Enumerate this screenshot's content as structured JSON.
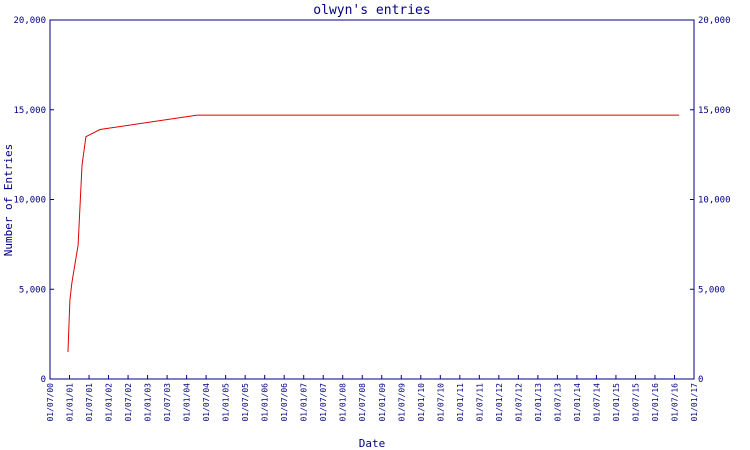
{
  "chart_data": {
    "type": "line",
    "title": "olwyn's entries",
    "x_label": "Date",
    "y_label": "Number of Entries",
    "x": [
      2000.96,
      2001.01,
      2001.06,
      2001.22,
      2001.32,
      2001.42,
      2001.78,
      2004.27,
      2016.62
    ],
    "series": [
      {
        "name": "olwyn",
        "color": "#e00000",
        "values": [
          1500,
          4400,
          5350,
          7460,
          11900,
          13500,
          13900,
          14700,
          14700
        ]
      }
    ],
    "xlim": [
      2000.5,
      2017.0
    ],
    "xticks": [
      {
        "value": 2000.5,
        "label": "01/07/00"
      },
      {
        "value": 2001.0,
        "label": "01/01/01"
      },
      {
        "value": 2001.5,
        "label": "01/07/01"
      },
      {
        "value": 2002.0,
        "label": "01/01/02"
      },
      {
        "value": 2002.5,
        "label": "01/07/02"
      },
      {
        "value": 2003.0,
        "label": "01/01/03"
      },
      {
        "value": 2003.5,
        "label": "01/07/03"
      },
      {
        "value": 2004.0,
        "label": "01/01/04"
      },
      {
        "value": 2004.5,
        "label": "01/07/04"
      },
      {
        "value": 2005.0,
        "label": "01/01/05"
      },
      {
        "value": 2005.5,
        "label": "01/07/05"
      },
      {
        "value": 2006.0,
        "label": "01/01/06"
      },
      {
        "value": 2006.5,
        "label": "01/07/06"
      },
      {
        "value": 2007.0,
        "label": "01/01/07"
      },
      {
        "value": 2007.5,
        "label": "01/07/07"
      },
      {
        "value": 2008.0,
        "label": "01/01/08"
      },
      {
        "value": 2008.5,
        "label": "01/07/08"
      },
      {
        "value": 2009.0,
        "label": "01/01/09"
      },
      {
        "value": 2009.5,
        "label": "01/07/09"
      },
      {
        "value": 2010.0,
        "label": "01/01/10"
      },
      {
        "value": 2010.5,
        "label": "01/07/10"
      },
      {
        "value": 2011.0,
        "label": "01/01/11"
      },
      {
        "value": 2011.5,
        "label": "01/07/11"
      },
      {
        "value": 2012.0,
        "label": "01/01/12"
      },
      {
        "value": 2012.5,
        "label": "01/07/12"
      },
      {
        "value": 2013.0,
        "label": "01/01/13"
      },
      {
        "value": 2013.5,
        "label": "01/07/13"
      },
      {
        "value": 2014.0,
        "label": "01/01/14"
      },
      {
        "value": 2014.5,
        "label": "01/07/14"
      },
      {
        "value": 2015.0,
        "label": "01/01/15"
      },
      {
        "value": 2015.5,
        "label": "01/07/15"
      },
      {
        "value": 2016.0,
        "label": "01/01/16"
      },
      {
        "value": 2016.5,
        "label": "01/07/16"
      },
      {
        "value": 2017.0,
        "label": "01/01/17"
      }
    ],
    "ylim": [
      0,
      20000
    ],
    "yticks": [
      0,
      {
        "value": 5000,
        "label": "5,000"
      },
      {
        "value": 10000,
        "label": "10,000"
      },
      {
        "value": 15000,
        "label": "15,000"
      },
      {
        "value": 20000,
        "label": "20,000"
      }
    ],
    "axis_color": "#000080"
  }
}
